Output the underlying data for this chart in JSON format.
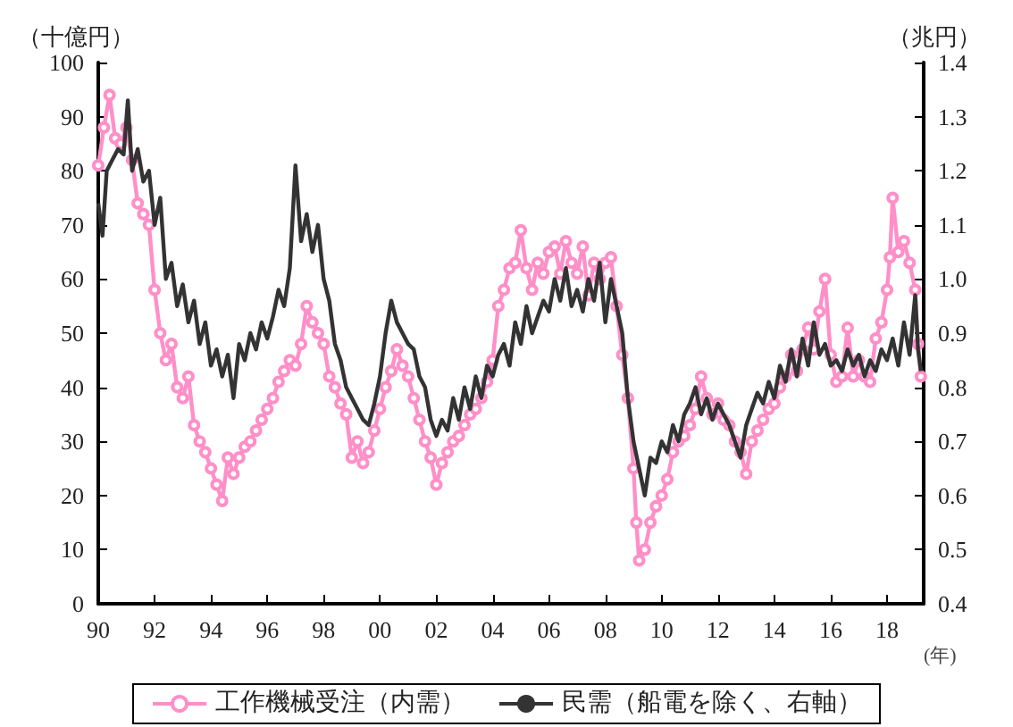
{
  "chart_data": {
    "type": "line",
    "ylabel": "（十億円）",
    "y2label": "（兆円）",
    "xlabel": "(年)",
    "xlim": [
      1990,
      2019.3
    ],
    "xticks": [
      {
        "value": 1990,
        "label": "90"
      },
      {
        "value": 1992,
        "label": "92"
      },
      {
        "value": 1994,
        "label": "94"
      },
      {
        "value": 1996,
        "label": "96"
      },
      {
        "value": 1998,
        "label": "98"
      },
      {
        "value": 2000,
        "label": "00"
      },
      {
        "value": 2002,
        "label": "02"
      },
      {
        "value": 2004,
        "label": "04"
      },
      {
        "value": 2006,
        "label": "06"
      },
      {
        "value": 2008,
        "label": "08"
      },
      {
        "value": 2010,
        "label": "10"
      },
      {
        "value": 2012,
        "label": "12"
      },
      {
        "value": 2014,
        "label": "14"
      },
      {
        "value": 2016,
        "label": "16"
      },
      {
        "value": 2018,
        "label": "18"
      }
    ],
    "ylim": [
      0,
      100
    ],
    "yticks": [
      0,
      10,
      20,
      30,
      40,
      50,
      60,
      70,
      80,
      90,
      100
    ],
    "y2lim": [
      0.4,
      1.4
    ],
    "y2ticks": [
      0.4,
      0.5,
      0.6,
      0.7,
      0.8,
      0.9,
      {
        "value": 1.0,
        "label": "1.0"
      },
      1.1,
      1.2,
      1.3,
      1.4
    ],
    "grid": false,
    "legend": "bottom",
    "series": [
      {
        "name": "工作機械受注（内需）",
        "color": "#ff8fc8",
        "marker": "circle",
        "x": [
          1990.0,
          1990.2,
          1990.4,
          1990.6,
          1990.8,
          1991.0,
          1991.2,
          1991.4,
          1991.6,
          1991.8,
          1992.0,
          1992.2,
          1992.4,
          1992.6,
          1992.8,
          1993.0,
          1993.2,
          1993.4,
          1993.6,
          1993.8,
          1994.0,
          1994.2,
          1994.4,
          1994.6,
          1994.8,
          1995.0,
          1995.2,
          1995.4,
          1995.6,
          1995.8,
          1996.0,
          1996.2,
          1996.4,
          1996.6,
          1996.8,
          1997.0,
          1997.2,
          1997.4,
          1997.6,
          1997.8,
          1998.0,
          1998.2,
          1998.4,
          1998.6,
          1998.8,
          1999.0,
          1999.2,
          1999.4,
          1999.6,
          1999.8,
          2000.0,
          2000.2,
          2000.4,
          2000.6,
          2000.8,
          2001.0,
          2001.2,
          2001.4,
          2001.6,
          2001.8,
          2002.0,
          2002.2,
          2002.4,
          2002.6,
          2002.8,
          2003.0,
          2003.2,
          2003.4,
          2003.6,
          2003.8,
          2004.0,
          2004.2,
          2004.4,
          2004.6,
          2004.8,
          2005.0,
          2005.2,
          2005.4,
          2005.6,
          2005.8,
          2006.0,
          2006.2,
          2006.4,
          2006.6,
          2006.8,
          2007.0,
          2007.2,
          2007.4,
          2007.6,
          2007.8,
          2008.0,
          2008.2,
          2008.4,
          2008.6,
          2008.8,
          2009.0,
          2009.1,
          2009.2,
          2009.4,
          2009.6,
          2009.8,
          2010.0,
          2010.2,
          2010.4,
          2010.6,
          2010.8,
          2011.0,
          2011.2,
          2011.4,
          2011.6,
          2011.8,
          2012.0,
          2012.2,
          2012.4,
          2012.6,
          2012.8,
          2013.0,
          2013.2,
          2013.4,
          2013.6,
          2013.8,
          2014.0,
          2014.2,
          2014.4,
          2014.6,
          2014.8,
          2015.0,
          2015.2,
          2015.4,
          2015.6,
          2015.8,
          2016.0,
          2016.2,
          2016.4,
          2016.6,
          2016.8,
          2017.0,
          2017.2,
          2017.4,
          2017.6,
          2017.8,
          2018.0,
          2018.1,
          2018.2,
          2018.4,
          2018.6,
          2018.8,
          2019.0,
          2019.1,
          2019.2
        ],
        "values": [
          81,
          88,
          94,
          86,
          85,
          88,
          82,
          74,
          72,
          70,
          58,
          50,
          45,
          48,
          40,
          38,
          42,
          33,
          30,
          28,
          25,
          22,
          19,
          27,
          24,
          27,
          29,
          30,
          32,
          34,
          36,
          38,
          41,
          43,
          45,
          44,
          48,
          55,
          52,
          50,
          48,
          42,
          40,
          37,
          35,
          27,
          30,
          26,
          28,
          32,
          36,
          40,
          43,
          47,
          44,
          42,
          38,
          34,
          30,
          27,
          22,
          26,
          28,
          30,
          31,
          33,
          35,
          36,
          38,
          41,
          45,
          55,
          58,
          62,
          63,
          69,
          62,
          58,
          63,
          61,
          65,
          66,
          61,
          67,
          63,
          61,
          66,
          57,
          63,
          60,
          63,
          64,
          55,
          46,
          38,
          25,
          15,
          8,
          10,
          15,
          18,
          20,
          23,
          28,
          30,
          31,
          33,
          36,
          42,
          38,
          35,
          37,
          34,
          33,
          30,
          28,
          24,
          30,
          32,
          34,
          36,
          37,
          40,
          42,
          46,
          43,
          47,
          51,
          47,
          54,
          60,
          46,
          41,
          42,
          51,
          42,
          45,
          42,
          41,
          49,
          52,
          58,
          64,
          75,
          65,
          67,
          63,
          58,
          48,
          42
        ]
      },
      {
        "name": "民需（船電を除く、右軸）",
        "color": "#333333",
        "marker": "none",
        "axis": "y2",
        "x": [
          1990.0,
          1990.15,
          1990.3,
          1990.5,
          1990.7,
          1990.9,
          1991.05,
          1991.2,
          1991.4,
          1991.6,
          1991.8,
          1992.0,
          1992.2,
          1992.4,
          1992.6,
          1992.8,
          1993.0,
          1993.2,
          1993.4,
          1993.6,
          1993.8,
          1994.0,
          1994.2,
          1994.4,
          1994.6,
          1994.8,
          1995.0,
          1995.2,
          1995.4,
          1995.6,
          1995.8,
          1996.0,
          1996.2,
          1996.4,
          1996.6,
          1996.8,
          1997.0,
          1997.2,
          1997.4,
          1997.6,
          1997.8,
          1998.0,
          1998.2,
          1998.4,
          1998.6,
          1998.8,
          1999.0,
          1999.2,
          1999.4,
          1999.6,
          1999.8,
          2000.0,
          2000.2,
          2000.4,
          2000.6,
          2000.8,
          2001.0,
          2001.2,
          2001.4,
          2001.6,
          2001.8,
          2002.0,
          2002.2,
          2002.4,
          2002.6,
          2002.8,
          2003.0,
          2003.2,
          2003.4,
          2003.6,
          2003.8,
          2004.0,
          2004.2,
          2004.4,
          2004.6,
          2004.8,
          2005.0,
          2005.2,
          2005.4,
          2005.6,
          2005.8,
          2006.0,
          2006.2,
          2006.4,
          2006.6,
          2006.8,
          2007.0,
          2007.2,
          2007.4,
          2007.6,
          2007.8,
          2008.0,
          2008.2,
          2008.4,
          2008.6,
          2008.8,
          2009.0,
          2009.2,
          2009.4,
          2009.6,
          2009.8,
          2010.0,
          2010.2,
          2010.4,
          2010.6,
          2010.8,
          2011.0,
          2011.2,
          2011.4,
          2011.6,
          2011.8,
          2012.0,
          2012.2,
          2012.4,
          2012.6,
          2012.8,
          2013.0,
          2013.2,
          2013.4,
          2013.6,
          2013.8,
          2014.0,
          2014.2,
          2014.4,
          2014.6,
          2014.8,
          2015.0,
          2015.2,
          2015.4,
          2015.6,
          2015.8,
          2016.0,
          2016.2,
          2016.4,
          2016.6,
          2016.8,
          2017.0,
          2017.2,
          2017.4,
          2017.6,
          2017.8,
          2018.0,
          2018.2,
          2018.4,
          2018.6,
          2018.8,
          2019.0,
          2019.1,
          2019.2
        ],
        "values": [
          1.14,
          1.08,
          1.2,
          1.22,
          1.24,
          1.23,
          1.33,
          1.2,
          1.24,
          1.18,
          1.2,
          1.1,
          1.15,
          1.0,
          1.03,
          0.95,
          0.99,
          0.92,
          0.96,
          0.88,
          0.92,
          0.84,
          0.87,
          0.82,
          0.86,
          0.78,
          0.88,
          0.85,
          0.9,
          0.87,
          0.92,
          0.89,
          0.93,
          0.98,
          0.95,
          1.02,
          1.21,
          1.07,
          1.12,
          1.05,
          1.1,
          1.0,
          0.96,
          0.88,
          0.85,
          0.8,
          0.78,
          0.76,
          0.74,
          0.73,
          0.77,
          0.82,
          0.9,
          0.96,
          0.92,
          0.9,
          0.88,
          0.87,
          0.82,
          0.8,
          0.74,
          0.71,
          0.74,
          0.72,
          0.78,
          0.74,
          0.8,
          0.76,
          0.82,
          0.78,
          0.84,
          0.82,
          0.86,
          0.88,
          0.84,
          0.92,
          0.88,
          0.95,
          0.9,
          0.93,
          0.96,
          0.94,
          1.0,
          0.96,
          1.02,
          0.95,
          0.98,
          0.94,
          1.0,
          0.96,
          1.03,
          0.92,
          1.0,
          0.95,
          0.9,
          0.78,
          0.7,
          0.65,
          0.6,
          0.67,
          0.66,
          0.7,
          0.68,
          0.73,
          0.7,
          0.75,
          0.77,
          0.8,
          0.75,
          0.78,
          0.74,
          0.77,
          0.75,
          0.73,
          0.7,
          0.67,
          0.73,
          0.76,
          0.79,
          0.77,
          0.81,
          0.78,
          0.84,
          0.81,
          0.87,
          0.82,
          0.89,
          0.84,
          0.92,
          0.86,
          0.88,
          0.84,
          0.85,
          0.83,
          0.87,
          0.84,
          0.86,
          0.82,
          0.85,
          0.83,
          0.87,
          0.85,
          0.89,
          0.84,
          0.92,
          0.86,
          0.97,
          0.87,
          0.83
        ]
      }
    ]
  }
}
